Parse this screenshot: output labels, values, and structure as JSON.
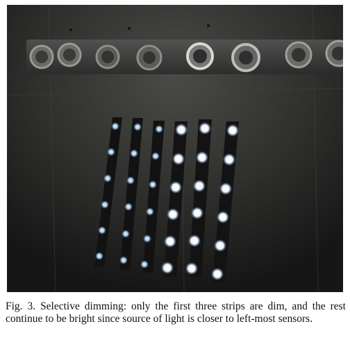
{
  "figure": {
    "description_icon": "photo-figure",
    "colors": {
      "background_dark": "#1c1c1c",
      "wall": "#3a3a38",
      "strip": "#141414",
      "led_dim": "#b9d6e8",
      "led_bright": "#ffffff"
    }
  },
  "caption": {
    "text": "Fig. 3. Selective dimming: only the first three strips are dim, and the rest continue to be bright since source of light is closer to left-most sensors."
  }
}
